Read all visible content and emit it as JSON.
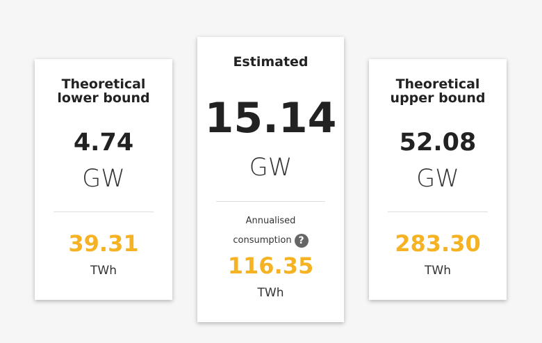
{
  "cards": [
    {
      "title": "Theoretical lower bound",
      "power": "4.74",
      "power_unit": "GW",
      "energy": "39.31",
      "energy_unit": "TWh"
    },
    {
      "title": "Estimated",
      "power": "15.14",
      "power_unit": "GW",
      "note": "Annualised consumption",
      "energy": "116.35",
      "energy_unit": "TWh"
    },
    {
      "title": "Theoretical upper bound",
      "power": "52.08",
      "power_unit": "GW",
      "energy": "283.30",
      "energy_unit": "TWh"
    }
  ]
}
